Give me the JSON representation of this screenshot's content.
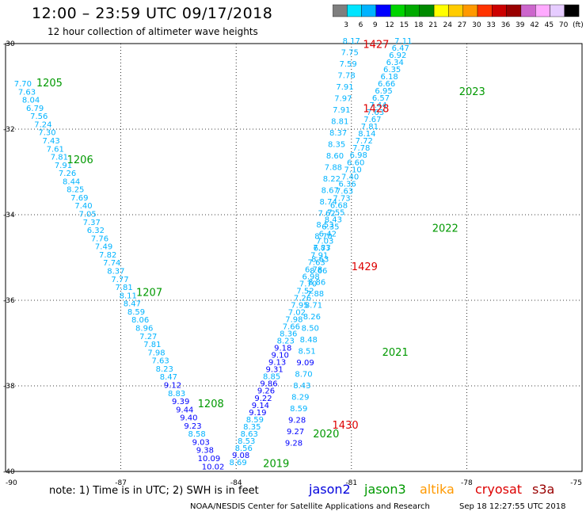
{
  "title": "12:00 – 23:59 UTC 09/17/2018",
  "subtitle": "12 hour collection of altimeter wave heights",
  "colorbar": {
    "colors": [
      "#7f7f7f",
      "#00e5ff",
      "#00b3ff",
      "#0000ff",
      "#00d400",
      "#00aa00",
      "#008a00",
      "#ffff00",
      "#ffcc00",
      "#ff9900",
      "#ff3300",
      "#cc0000",
      "#990000",
      "#cc66cc",
      "#ffaaff",
      "#e6ccff",
      "#000000"
    ],
    "labels": [
      "3",
      "6",
      "9",
      "12",
      "15",
      "18",
      "21",
      "24",
      "27",
      "30",
      "33",
      "36",
      "39",
      "42",
      "45",
      "70",
      "(ft)"
    ]
  },
  "axes": {
    "lon_ticks": [
      "-90",
      "-87",
      "-84",
      "-81",
      "-78",
      "-75"
    ],
    "lat_ticks": [
      "-30",
      "-32",
      "-34",
      "-36",
      "-38",
      "-40"
    ]
  },
  "note": "note:  1) Time is in UTC;  2) SWH is in feet",
  "satellites": [
    {
      "name": "jason2",
      "color": "#0000dd"
    },
    {
      "name": "jason3",
      "color": "#009900"
    },
    {
      "name": "altika",
      "color": "#ff9900"
    },
    {
      "name": "cryosat",
      "color": "#dd0000"
    },
    {
      "name": "s3a",
      "color": "#990000"
    }
  ],
  "footer_left": "NOAA/NESDIS Center for Satellite Applications and Research",
  "footer_right": "Sep 18 12:27:55 UTC 2018",
  "time_labels": [
    {
      "text": "1205",
      "lon": -89.2,
      "lat": -31.0,
      "color": "#009900"
    },
    {
      "text": "1206",
      "lon": -88.4,
      "lat": -32.8,
      "color": "#009900"
    },
    {
      "text": "1207",
      "lon": -86.6,
      "lat": -35.9,
      "color": "#009900"
    },
    {
      "text": "1208",
      "lon": -85.0,
      "lat": -38.5,
      "color": "#009900"
    },
    {
      "text": "2019",
      "lon": -83.3,
      "lat": -39.9,
      "color": "#009900"
    },
    {
      "text": "2020",
      "lon": -82.0,
      "lat": -39.2,
      "color": "#009900"
    },
    {
      "text": "2021",
      "lon": -80.2,
      "lat": -37.3,
      "color": "#009900"
    },
    {
      "text": "2022",
      "lon": -78.9,
      "lat": -34.4,
      "color": "#009900"
    },
    {
      "text": "2023",
      "lon": -78.2,
      "lat": -31.2,
      "color": "#009900"
    },
    {
      "text": "1427",
      "lon": -80.7,
      "lat": -30.1,
      "color": "#dd0000"
    },
    {
      "text": "1428",
      "lon": -80.7,
      "lat": -31.6,
      "color": "#dd0000"
    },
    {
      "text": "1429",
      "lon": -81.0,
      "lat": -35.3,
      "color": "#dd0000"
    },
    {
      "text": "1430",
      "lon": -81.5,
      "lat": -39.0,
      "color": "#dd0000"
    }
  ],
  "tracks": [
    {
      "name": "jason3-descending",
      "lon_start": -89.55,
      "lat_start": -31.0,
      "lon_end": -84.6,
      "lat_end": -39.95,
      "values": [
        "7.70",
        "7.63",
        "8.04",
        "6.79",
        "7.56",
        "7.24",
        "7.30",
        "7.43",
        "7.61",
        "7.81",
        "7.91",
        "7.26",
        "8.44",
        "8.25",
        "7.69",
        "7.40",
        "7.05",
        "7.37",
        "6.32",
        "7.76",
        "7.49",
        "7.82",
        "7.74",
        "8.37",
        "7.77",
        "7.81",
        "8.11",
        "8.47",
        "8.59",
        "8.06",
        "8.96",
        "7.27",
        "7.81",
        "7.98",
        "7.63",
        "8.23",
        "8.47",
        "9.12",
        "8.83",
        "9.39",
        "9.44",
        "9.40",
        "9.23",
        "8.58",
        "9.03",
        "9.38",
        "10.09",
        "10.02"
      ]
    },
    {
      "name": "jason3-ascending",
      "lon_start": -79.65,
      "lat_start": -30.0,
      "lon_end": -83.95,
      "lat_end": -39.85,
      "values": [
        "7.11",
        "6.47",
        "6.92",
        "6.34",
        "6.35",
        "6.18",
        "6.66",
        "6.95",
        "6.57",
        "7.44",
        "7.63",
        "7.67",
        "7.81",
        "8.14",
        "7.72",
        "7.78",
        "6.98",
        "6.60",
        "7.10",
        "7.40",
        "6.36",
        "7.63",
        "7.73",
        "6.68",
        "7.55",
        "8.43",
        "6.35",
        "6.42",
        "7.03",
        "6.77",
        "7.91",
        "7.63",
        "6.78",
        "6.98",
        "7.70",
        "7.52",
        "7.26",
        "7.95",
        "7.02",
        "7.98",
        "7.66",
        "8.36",
        "8.23",
        "9.18",
        "9.10",
        "9.13",
        "9.31",
        "8.85",
        "9.86",
        "9.26",
        "9.22",
        "9.14",
        "9.19",
        "8.59",
        "8.35",
        "8.63",
        "8.53",
        "8.56",
        "9.08",
        "8.69"
      ]
    },
    {
      "name": "cryosat-track",
      "lon_start": -81.0,
      "lat_start": -30.0,
      "lon_end": -82.5,
      "lat_end": -39.4,
      "values": [
        "8.17",
        "7.75",
        "7.59",
        "7.78",
        "7.91",
        "7.97",
        "7.91",
        "8.81",
        "8.37",
        "8.35",
        "8.60",
        "7.88",
        "8.22",
        "8.67",
        "8.74",
        "7.62",
        "8.53",
        "8.70",
        "7.83",
        "8.63",
        "8.66",
        "8.86",
        "7.88",
        "8.71",
        "8.26",
        "8.50",
        "8.48",
        "8.51",
        "9.09",
        "8.70",
        "8.43",
        "8.29",
        "8.59",
        "9.28",
        "9.27",
        "9.28"
      ]
    }
  ]
}
